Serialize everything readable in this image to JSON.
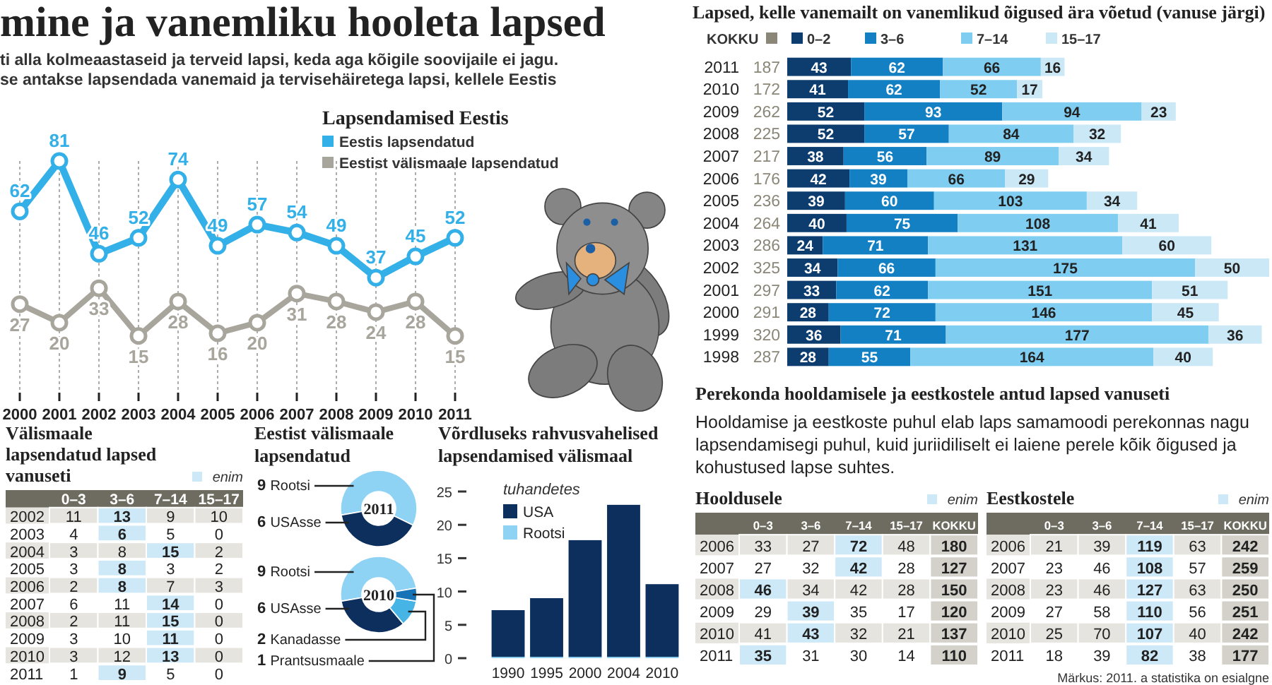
{
  "chart_data": [
    {
      "type": "other",
      "title": "mine ja vanemliku hooleta lapsed",
      "annotations": [
        "ti alla kolmeaastaseid ja terveid lapsi, keda aga kõigile soovijaile ei jagu.",
        "se antakse lapsendada vanemaid ja tervisehäiretega lapsi, kellele Eestis"
      ]
    },
    {
      "type": "line",
      "title": "Lapsendamised Eestis",
      "categories": [
        "2000",
        "2001",
        "2002",
        "2003",
        "2004",
        "2005",
        "2006",
        "2007",
        "2008",
        "2009",
        "2010",
        "2011"
      ],
      "series": [
        {
          "name": "Eestis lapsendatud",
          "color": "#33b0e8",
          "values": [
            62,
            81,
            46,
            52,
            74,
            49,
            57,
            54,
            49,
            37,
            45,
            52
          ]
        },
        {
          "name": "Eestist välismaale lapsendatud",
          "color": "#a8a69c",
          "values": [
            27,
            20,
            33,
            15,
            28,
            16,
            20,
            31,
            28,
            24,
            28,
            15
          ]
        }
      ],
      "data_labels": true,
      "marker": "circle",
      "grid": "x",
      "legend": "top right"
    },
    {
      "type": "bar",
      "orientation": "horizontal",
      "stacked": true,
      "title": "Lapsed, kelle vanemailt on vanemlikud õigused ära võetud (vanuse järgi)",
      "legend_title": "KOKKU",
      "legend": "top",
      "data_labels": true,
      "categories": [
        "2011",
        "2010",
        "2009",
        "2008",
        "2007",
        "2006",
        "2005",
        "2004",
        "2003",
        "2002",
        "2001",
        "2000",
        "1999",
        "1998"
      ],
      "totals": [
        "187",
        "172",
        "262",
        "225",
        "217",
        "176",
        "236",
        "264",
        "286",
        "325",
        "297",
        "291",
        "320",
        "287"
      ],
      "series": [
        {
          "name": "0–2",
          "color": "#0d3d6e",
          "values": [
            43,
            41,
            52,
            52,
            38,
            42,
            39,
            40,
            24,
            34,
            33,
            28,
            36,
            28
          ]
        },
        {
          "name": "3–6",
          "color": "#1380c4",
          "values": [
            62,
            62,
            93,
            57,
            56,
            39,
            60,
            75,
            71,
            66,
            62,
            72,
            71,
            55
          ]
        },
        {
          "name": "7–14",
          "color": "#7fcdf0",
          "values": [
            66,
            52,
            94,
            84,
            89,
            66,
            103,
            108,
            131,
            175,
            151,
            146,
            177,
            164
          ]
        },
        {
          "name": "15–17",
          "color": "#cbe8f7",
          "values": [
            16,
            17,
            23,
            32,
            34,
            29,
            34,
            41,
            60,
            50,
            51,
            45,
            36,
            40
          ]
        }
      ]
    },
    {
      "type": "heatmap",
      "title": "Välismaale lapsendatud lapsed vanuseti",
      "legend_title": "enim",
      "data_labels": true,
      "categories": [
        "0–3",
        "3–6",
        "7–14",
        "15–17"
      ],
      "y_categories": [
        "2002",
        "2003",
        "2004",
        "2005",
        "2006",
        "2007",
        "2008",
        "2009",
        "2010",
        "2011"
      ],
      "cells": [
        [
          11,
          13,
          9,
          10
        ],
        [
          4,
          6,
          5,
          0
        ],
        [
          3,
          8,
          15,
          2
        ],
        [
          3,
          8,
          3,
          2
        ],
        [
          2,
          8,
          7,
          3
        ],
        [
          6,
          11,
          14,
          0
        ],
        [
          2,
          11,
          15,
          0
        ],
        [
          3,
          10,
          11,
          0
        ],
        [
          3,
          12,
          13,
          0
        ],
        [
          1,
          9,
          5,
          0
        ]
      ]
    },
    {
      "type": "donut",
      "title": "Eestist välismaale lapsendatud",
      "annotations": [
        "2011"
      ],
      "categories": [
        "Rootsi",
        "USAsse"
      ],
      "values": [
        9,
        6
      ],
      "colors": [
        "#8fd3f4",
        "#0d2f5e"
      ],
      "data_labels": true
    },
    {
      "type": "donut",
      "annotations": [
        "2010"
      ],
      "categories": [
        "Rootsi",
        "USAsse",
        "Kanadasse",
        "Prantsusmaale"
      ],
      "values": [
        9,
        6,
        2,
        1
      ],
      "colors": [
        "#8fd3f4",
        "#0d2f5e",
        "#47b4e6",
        "#1673b5"
      ],
      "data_labels": true
    },
    {
      "type": "bar",
      "stacked": true,
      "title": "Võrdluseks rahvusvahelised lapsendamised välismaal",
      "ylabel": "tuhandetes",
      "legend": "top left",
      "categories": [
        "1990",
        "1995",
        "2000",
        "2004",
        "2010"
      ],
      "ylim": [
        0,
        25
      ],
      "yticks": [
        0,
        5,
        10,
        15,
        20,
        25
      ],
      "series": [
        {
          "name": "Rootsi",
          "color": "#8fd3f4",
          "values": [
            0.2,
            0.2,
            0.2,
            0.2,
            0.2
          ]
        },
        {
          "name": "USA",
          "color": "#0d2f5e",
          "values": [
            7.0,
            8.8,
            17.5,
            22.8,
            10.9
          ]
        }
      ]
    },
    {
      "type": "other",
      "title": "Perekonda hooldamisele ja eestkostele antud lapsed vanuseti",
      "subtitle": "Hooldamise ja eestkoste puhul elab laps samamoodi perekonnas nagu lapsendamisegi puhul, kuid juriidiliselt ei laiene perele kõik õigused ja kohustused lapse suhtes."
    },
    {
      "type": "heatmap",
      "title": "Hooldusele",
      "legend_title": "enim",
      "data_labels": true,
      "categories": [
        "0–3",
        "3–6",
        "7–14",
        "15–17",
        "KOKKU"
      ],
      "y_categories": [
        "2006",
        "2007",
        "2008",
        "2009",
        "2010",
        "2011"
      ],
      "cells": [
        [
          33,
          27,
          72,
          48,
          180
        ],
        [
          27,
          32,
          42,
          28,
          127
        ],
        [
          46,
          34,
          42,
          28,
          150
        ],
        [
          29,
          39,
          35,
          17,
          120
        ],
        [
          41,
          43,
          32,
          21,
          137
        ],
        [
          35,
          31,
          30,
          14,
          110
        ]
      ]
    },
    {
      "type": "heatmap",
      "title": "Eestkostele",
      "legend_title": "enim",
      "data_labels": true,
      "categories": [
        "0–3",
        "3–6",
        "7–14",
        "15–17",
        "KOKKU"
      ],
      "y_categories": [
        "2006",
        "2007",
        "2008",
        "2009",
        "2010",
        "2011"
      ],
      "cells": [
        [
          21,
          39,
          119,
          63,
          242
        ],
        [
          23,
          46,
          108,
          57,
          259
        ],
        [
          23,
          46,
          127,
          63,
          250
        ],
        [
          27,
          58,
          110,
          56,
          251
        ],
        [
          25,
          70,
          107,
          40,
          242
        ],
        [
          18,
          39,
          82,
          38,
          177
        ]
      ],
      "annotations": [
        "Märkus: 2011. a statistika on esialgne"
      ]
    }
  ]
}
